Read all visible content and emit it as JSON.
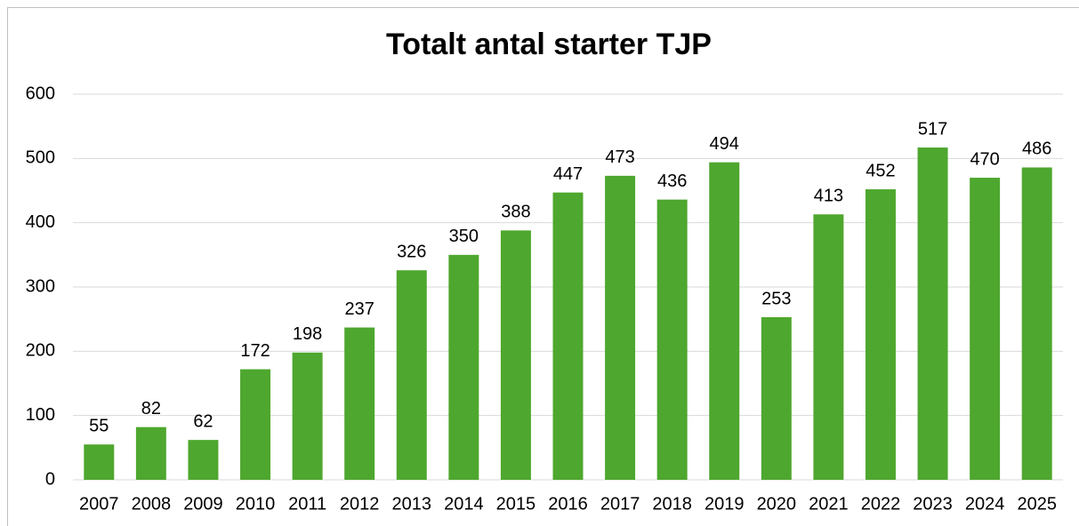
{
  "chart_data": {
    "type": "bar",
    "title": "Totalt antal starter TJP",
    "categories": [
      "2007",
      "2008",
      "2009",
      "2010",
      "2011",
      "2012",
      "2013",
      "2014",
      "2015",
      "2016",
      "2017",
      "2018",
      "2019",
      "2020",
      "2021",
      "2022",
      "2023",
      "2024",
      "2025"
    ],
    "values": [
      55,
      82,
      62,
      172,
      198,
      237,
      326,
      350,
      388,
      447,
      473,
      436,
      494,
      253,
      413,
      452,
      517,
      470,
      486
    ],
    "color": "#4ea72e",
    "ylim": [
      0,
      600
    ],
    "yticks": [
      0,
      100,
      200,
      300,
      400,
      500,
      600
    ],
    "grid": true
  }
}
